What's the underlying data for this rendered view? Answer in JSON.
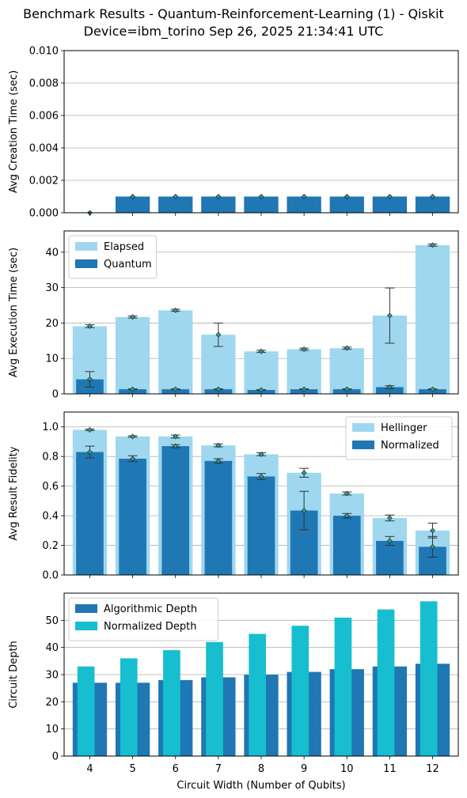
{
  "figure": {
    "title_line1": "Benchmark Results - Quantum-Reinforcement-Learning (1) - Qiskit",
    "title_line2": "Device=ibm_torino  Sep 26, 2025 21:34:41 UTC"
  },
  "colors": {
    "light_blue": "#9fd7ef",
    "dark_blue": "#1f77b4",
    "cyan": "#17becf",
    "marker": "#2ca089",
    "grid": "#b0b0b0"
  },
  "chart_data": [
    {
      "type": "bar",
      "ylabel": "Avg Creation Time (sec)",
      "xlabel": "",
      "categories": [
        4,
        5,
        6,
        7,
        8,
        9,
        10,
        11,
        12
      ],
      "ylim": [
        0,
        0.01
      ],
      "yticks": [
        "0.000",
        "0.002",
        "0.004",
        "0.006",
        "0.008",
        "0.010"
      ],
      "grid": true,
      "series": [
        {
          "values": [
            0.0,
            0.001,
            0.001,
            0.001,
            0.001,
            0.001,
            0.001,
            0.001,
            0.001
          ],
          "color": "#1f77b4"
        }
      ]
    },
    {
      "type": "bar",
      "ylabel": "Avg Execution Time (sec)",
      "xlabel": "",
      "categories": [
        4,
        5,
        6,
        7,
        8,
        9,
        10,
        11,
        12
      ],
      "ylim": [
        0,
        46
      ],
      "yticks": [
        "0",
        "10",
        "20",
        "30",
        "40"
      ],
      "grid": true,
      "legend": "top-left",
      "series": [
        {
          "name": "Elapsed",
          "values": [
            19.1,
            21.7,
            23.6,
            16.7,
            12.0,
            12.6,
            12.9,
            22.1,
            42.0
          ],
          "errors": [
            0.4,
            0.3,
            0.3,
            3.3,
            0.3,
            0.3,
            0.3,
            7.8,
            0.3
          ],
          "color": "#9fd7ef"
        },
        {
          "name": "Quantum",
          "values": [
            4.1,
            1.3,
            1.3,
            1.3,
            1.1,
            1.3,
            1.3,
            1.9,
            1.3
          ],
          "errors": [
            2.2,
            0.1,
            0.1,
            0.1,
            0.1,
            0.1,
            0.1,
            0.4,
            0.1
          ],
          "color": "#1f77b4"
        }
      ]
    },
    {
      "type": "bar",
      "ylabel": "Avg Result Fidelity",
      "xlabel": "",
      "categories": [
        4,
        5,
        6,
        7,
        8,
        9,
        10,
        11,
        12
      ],
      "ylim": [
        0,
        1.1
      ],
      "yticks": [
        "0.0",
        "0.2",
        "0.4",
        "0.6",
        "0.8",
        "1.0"
      ],
      "grid": true,
      "legend": "top-right",
      "series": [
        {
          "name": "Hellinger",
          "values": [
            0.98,
            0.935,
            0.935,
            0.875,
            0.815,
            0.69,
            0.55,
            0.385,
            0.3
          ],
          "errors": [
            0.005,
            0.005,
            0.01,
            0.01,
            0.01,
            0.03,
            0.01,
            0.02,
            0.05
          ],
          "color": "#9fd7ef"
        },
        {
          "name": "Normalized",
          "values": [
            0.83,
            0.785,
            0.87,
            0.77,
            0.665,
            0.435,
            0.4,
            0.23,
            0.19
          ],
          "errors": [
            0.04,
            0.02,
            0.01,
            0.015,
            0.02,
            0.13,
            0.015,
            0.03,
            0.07
          ],
          "color": "#1f77b4"
        }
      ]
    },
    {
      "type": "bar",
      "ylabel": "Circuit Depth",
      "xlabel": "Circuit Width (Number of Qubits)",
      "categories": [
        4,
        5,
        6,
        7,
        8,
        9,
        10,
        11,
        12
      ],
      "ylim": [
        0,
        60
      ],
      "yticks": [
        "0",
        "10",
        "20",
        "30",
        "40",
        "50"
      ],
      "grid": true,
      "legend": "top-left",
      "series": [
        {
          "name": "Algorithmic Depth",
          "values": [
            27,
            27,
            28,
            29,
            30,
            31,
            32,
            33,
            34
          ],
          "color": "#1f77b4"
        },
        {
          "name": "Normalized Depth",
          "values": [
            33,
            36,
            39,
            42,
            45,
            48,
            51,
            54,
            57
          ],
          "color": "#17becf"
        }
      ]
    }
  ]
}
